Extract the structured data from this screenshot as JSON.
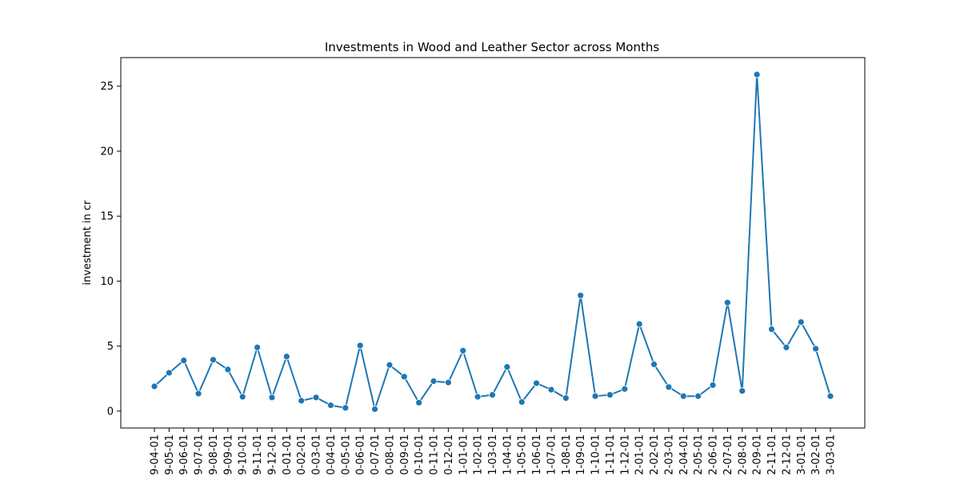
{
  "chart_data": {
    "type": "line",
    "title": "Investments in Wood and Leather Sector across Months",
    "xlabel": "",
    "ylabel": "investment in cr",
    "categories": [
      "9-04-01",
      "9-05-01",
      "9-06-01",
      "9-07-01",
      "9-08-01",
      "9-09-01",
      "9-10-01",
      "9-11-01",
      "9-12-01",
      "0-01-01",
      "0-02-01",
      "0-03-01",
      "0-04-01",
      "0-05-01",
      "0-06-01",
      "0-07-01",
      "0-08-01",
      "0-09-01",
      "0-10-01",
      "0-11-01",
      "0-12-01",
      "1-01-01",
      "1-02-01",
      "1-03-01",
      "1-04-01",
      "1-05-01",
      "1-06-01",
      "1-07-01",
      "1-08-01",
      "1-09-01",
      "1-10-01",
      "1-11-01",
      "1-12-01",
      "2-01-01",
      "2-02-01",
      "2-03-01",
      "2-04-01",
      "2-05-01",
      "2-06-01",
      "2-07-01",
      "2-08-01",
      "2-09-01",
      "2-11-01",
      "2-12-01",
      "3-01-01",
      "3-02-01",
      "3-03-01"
    ],
    "values": [
      1.9,
      2.95,
      3.9,
      1.35,
      3.95,
      3.2,
      1.1,
      4.9,
      1.05,
      4.2,
      0.8,
      1.05,
      0.45,
      0.25,
      5.05,
      0.15,
      3.55,
      2.65,
      0.65,
      2.3,
      2.2,
      4.65,
      1.1,
      1.25,
      3.4,
      0.7,
      2.15,
      1.65,
      1.0,
      8.9,
      1.15,
      1.25,
      1.7,
      6.7,
      3.6,
      1.85,
      1.15,
      1.15,
      2.0,
      8.35,
      1.55,
      25.9,
      6.3,
      4.9,
      6.85,
      4.8,
      1.15
    ],
    "ylim": [
      -1.3,
      27.2
    ],
    "yticks": [
      0,
      5,
      10,
      15,
      20,
      25
    ],
    "grid": false,
    "line_color": "#1f77b4",
    "marker": "circle"
  }
}
